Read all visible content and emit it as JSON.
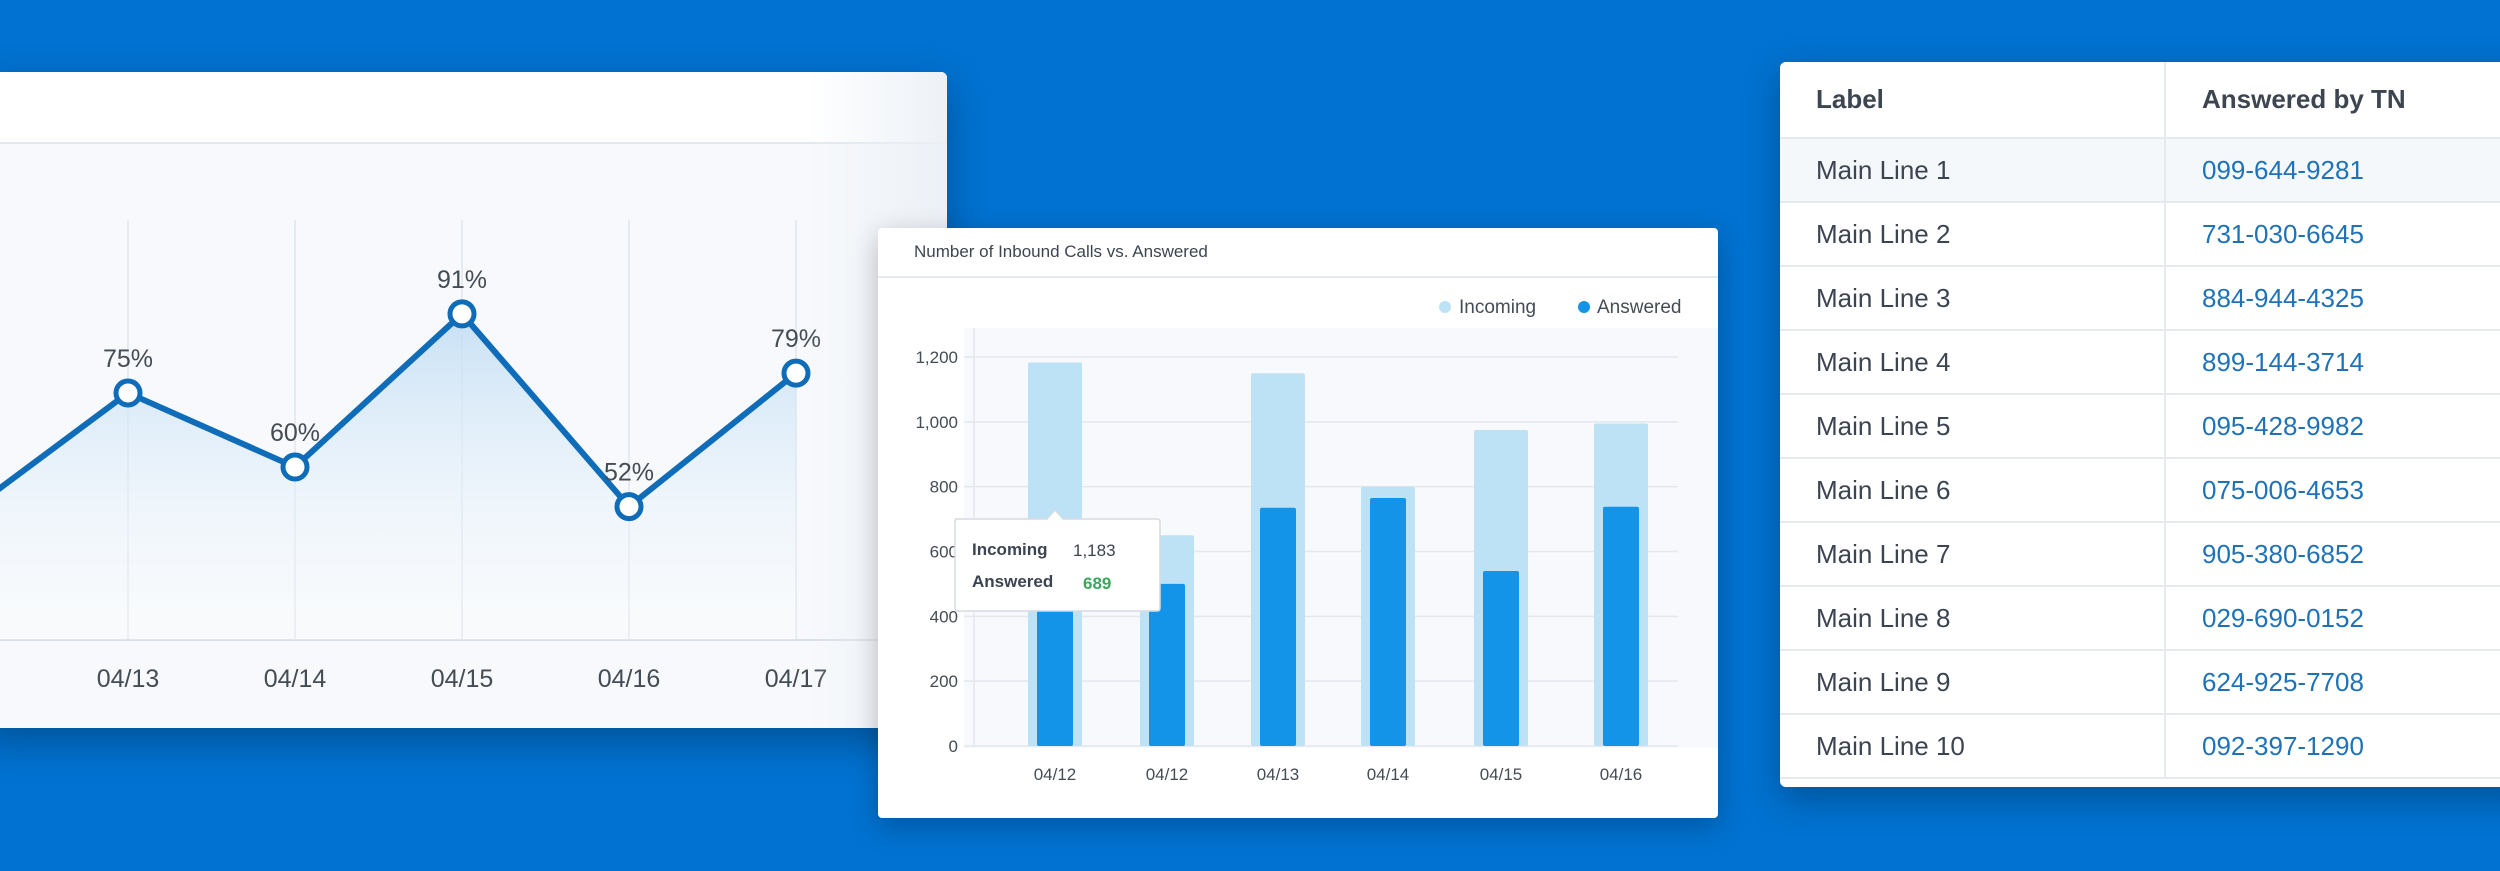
{
  "colors": {
    "background": "#0172d1",
    "line": "#0e6cb8",
    "incoming": "#bee2f5",
    "answered": "#1494e8",
    "answered_value": "#3aa85a",
    "link": "#1f72b8"
  },
  "line_chart": {
    "chart_data": {
      "type": "line",
      "x": [
        "04/13",
        "04/14",
        "04/15",
        "04/16",
        "04/17"
      ],
      "values": [
        75,
        60,
        91,
        52,
        79
      ],
      "point_labels": [
        "75%",
        "60%",
        "91%",
        "52%",
        "79%"
      ]
    }
  },
  "bar_chart": {
    "title": "Number of Inbound Calls vs. Answered",
    "chart_data": {
      "type": "bar",
      "categories": [
        "04/12",
        "04/12",
        "04/13",
        "04/14",
        "04/15",
        "04/16"
      ],
      "series": [
        {
          "name": "Incoming",
          "values": [
            1183,
            650,
            1150,
            800,
            975,
            995
          ]
        },
        {
          "name": "Answered",
          "values": [
            689,
            500,
            735,
            765,
            540,
            738
          ]
        }
      ],
      "ylim": [
        0,
        1200
      ],
      "yticks": [
        "0",
        "200",
        "400",
        "600",
        "800",
        "1,000",
        "1,200"
      ],
      "legend_position": "top-right",
      "grid": true
    },
    "tooltip": {
      "rows": [
        {
          "label": "Incoming",
          "value": "1,183"
        },
        {
          "label": "Answered",
          "value": "689"
        }
      ]
    }
  },
  "table": {
    "headers": [
      "Label",
      "Answered by TN"
    ],
    "rows": [
      {
        "label": "Main Line 1",
        "tn": "099-644-9281"
      },
      {
        "label": "Main Line 2",
        "tn": "731-030-6645"
      },
      {
        "label": "Main Line 3",
        "tn": "884-944-4325"
      },
      {
        "label": "Main Line 4",
        "tn": "899-144-3714"
      },
      {
        "label": "Main Line 5",
        "tn": "095-428-9982"
      },
      {
        "label": "Main Line 6",
        "tn": "075-006-4653"
      },
      {
        "label": "Main Line 7",
        "tn": "905-380-6852"
      },
      {
        "label": "Main Line 8",
        "tn": "029-690-0152"
      },
      {
        "label": "Main Line 9",
        "tn": "624-925-7708"
      },
      {
        "label": "Main Line 10",
        "tn": "092-397-1290"
      }
    ]
  }
}
